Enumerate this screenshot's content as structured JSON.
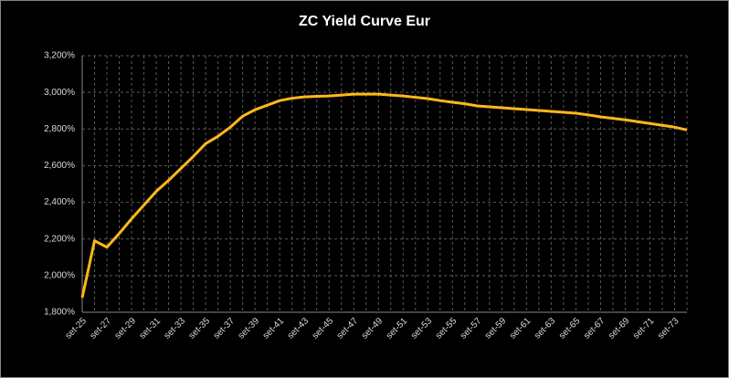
{
  "chart_data": {
    "type": "line",
    "title": "ZC Yield Curve Eur",
    "categories": [
      "set-25",
      null,
      "set-27",
      null,
      "set-29",
      null,
      "set-31",
      null,
      "set-33",
      null,
      "set-35",
      null,
      "set-37",
      null,
      "set-39",
      null,
      "set-41",
      null,
      "set-43",
      null,
      "set-45",
      null,
      "set-47",
      null,
      "set-49",
      null,
      "set-51",
      null,
      "set-53",
      null,
      "set-55",
      null,
      "set-57",
      null,
      "set-59",
      null,
      "set-61",
      null,
      "set-63",
      null,
      "set-65",
      null,
      "set-67",
      null,
      "set-69",
      null,
      "set-71",
      null,
      "set-73",
      null
    ],
    "values": [
      1.88,
      2.19,
      2.155,
      2.23,
      2.31,
      2.385,
      2.46,
      2.52,
      2.585,
      2.65,
      2.72,
      2.76,
      2.81,
      2.87,
      2.905,
      2.93,
      2.955,
      2.968,
      2.975,
      2.978,
      2.98,
      2.985,
      2.99,
      2.99,
      2.99,
      2.985,
      2.98,
      2.973,
      2.966,
      2.955,
      2.946,
      2.938,
      2.926,
      2.921,
      2.916,
      2.911,
      2.906,
      2.901,
      2.896,
      2.891,
      2.886,
      2.877,
      2.866,
      2.858,
      2.85,
      2.84,
      2.83,
      2.82,
      2.81,
      2.795
    ],
    "color": "#ffb81c",
    "ylim": [
      1.8,
      3.2
    ],
    "yticks": [
      {
        "value": 1.8,
        "label": "1,800%"
      },
      {
        "value": 2.0,
        "label": "2,000%"
      },
      {
        "value": 2.2,
        "label": "2,200%"
      },
      {
        "value": 2.4,
        "label": "2,400%"
      },
      {
        "value": 2.6,
        "label": "2,600%"
      },
      {
        "value": 2.8,
        "label": "2,800%"
      },
      {
        "value": 3.0,
        "label": "3,000%"
      },
      {
        "value": 3.2,
        "label": "3,200%"
      }
    ],
    "grid": true
  }
}
